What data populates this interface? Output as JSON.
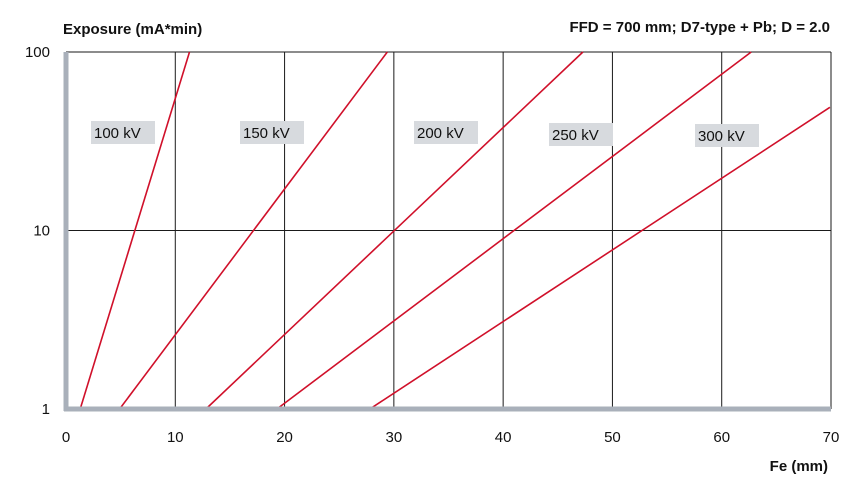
{
  "chart_data": {
    "type": "line",
    "y_scale": "log",
    "ylabel": "Exposure (mA*min)",
    "annotation": "FFD = 700 mm; D7-type + Pb; D = 2.0",
    "xlabel": "Fe (mm)",
    "xlim": [
      0,
      70
    ],
    "ylim": [
      1,
      100
    ],
    "x_ticks": [
      "0",
      "10",
      "20",
      "30",
      "40",
      "50",
      "60",
      "70"
    ],
    "y_ticks": [
      "1",
      "10",
      "100"
    ],
    "grid": true,
    "colors": {
      "series_line": "#d0102a",
      "axis": "#a9b0ba",
      "grid": "#1a1a1a",
      "label_box": "#d7dade"
    },
    "series": [
      {
        "name": "100 kV",
        "x": [
          1.3,
          11.3
        ],
        "y": [
          1,
          100
        ]
      },
      {
        "name": "150 kV",
        "x": [
          4.9,
          29.4
        ],
        "y": [
          1,
          100
        ]
      },
      {
        "name": "200 kV",
        "x": [
          12.8,
          47.3
        ],
        "y": [
          1,
          100
        ]
      },
      {
        "name": "250 kV",
        "x": [
          19.3,
          62.7
        ],
        "y": [
          1,
          100
        ]
      },
      {
        "name": "300 kV",
        "x": [
          27.8,
          69.9
        ],
        "y": [
          1,
          49
        ]
      }
    ]
  }
}
